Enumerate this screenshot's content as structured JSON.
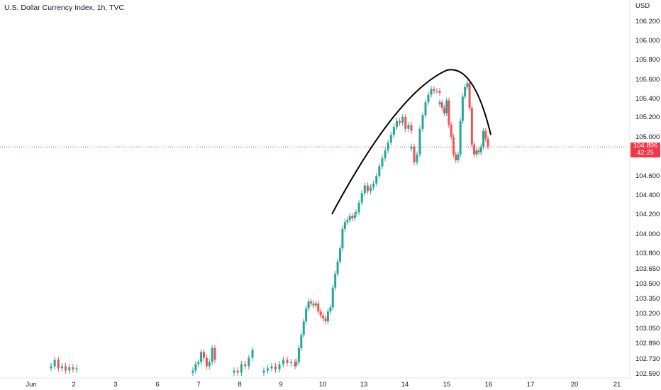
{
  "header": {
    "title": "U.S. Dollar Currency Index, 1h, TVC"
  },
  "axis": {
    "currency": "USD"
  },
  "last_price": {
    "value": "104.896",
    "countdown": "42:25",
    "color": "#f23645"
  },
  "colors": {
    "up": "#26a69a",
    "down": "#ef5350",
    "arc": "#000000"
  },
  "chart_data": {
    "type": "candlestick",
    "title": "U.S. Dollar Currency Index, 1h, TVC",
    "x_ticks": [
      "Jun",
      "2",
      "3",
      "6",
      "7",
      "8",
      "9",
      "10",
      "13",
      "14",
      "15",
      "16",
      "17",
      "20",
      "21"
    ],
    "y_ticks": [
      "106.200",
      "106.000",
      "105.800",
      "105.600",
      "105.400",
      "105.200",
      "105.000",
      "104.600",
      "104.400",
      "104.200",
      "104.000",
      "103.800",
      "103.650",
      "103.500",
      "103.350",
      "103.200",
      "103.050",
      "102.890",
      "102.730",
      "102.590"
    ],
    "ylim": [
      102.59,
      106.3
    ],
    "last_value": 104.896,
    "series": [
      {
        "day": "1",
        "values": [
          102.66,
          102.72,
          102.64,
          102.66,
          102.62,
          102.65,
          102.63,
          102.64
        ]
      },
      {
        "day": "7",
        "values": [
          102.62,
          102.68,
          102.7,
          102.8,
          102.74,
          102.66,
          102.7,
          102.84,
          102.72
        ]
      },
      {
        "day": "8",
        "values": [
          102.62,
          102.6,
          102.68,
          102.66,
          102.74,
          102.82
        ]
      },
      {
        "day": "9",
        "values": [
          102.62,
          102.64,
          102.66,
          102.63,
          102.68,
          102.72,
          102.69,
          102.7,
          102.66
        ]
      },
      {
        "day": "9-10",
        "values": [
          102.7,
          102.84,
          102.98,
          103.12,
          103.25,
          103.32,
          103.3,
          103.28,
          103.3,
          103.22,
          103.18,
          103.15,
          103.12,
          103.22,
          103.26,
          103.46,
          103.6,
          103.72,
          103.85,
          104.05,
          104.12,
          104.14,
          104.18,
          104.16,
          104.19
        ]
      },
      {
        "day": "13",
        "values": [
          104.22,
          104.32,
          104.42,
          104.5,
          104.44,
          104.48,
          104.52,
          104.6,
          104.7,
          104.78,
          104.86,
          104.94,
          105.02,
          105.1,
          105.16,
          105.14,
          105.2,
          105.08,
          105.12,
          105.06
        ]
      },
      {
        "day": "14",
        "values": [
          104.9,
          104.74,
          104.82,
          105.08,
          105.22,
          105.36,
          105.44,
          105.5,
          105.48,
          105.48,
          105.46
        ]
      },
      {
        "day": "15",
        "values": [
          105.36,
          105.3,
          105.24,
          105.38,
          105.12,
          105.0,
          104.82,
          104.76,
          104.82,
          105.16,
          105.42,
          105.52,
          105.56,
          105.3,
          104.92,
          104.82,
          104.86,
          104.84,
          104.9,
          105.06,
          104.98,
          104.9
        ]
      }
    ]
  }
}
